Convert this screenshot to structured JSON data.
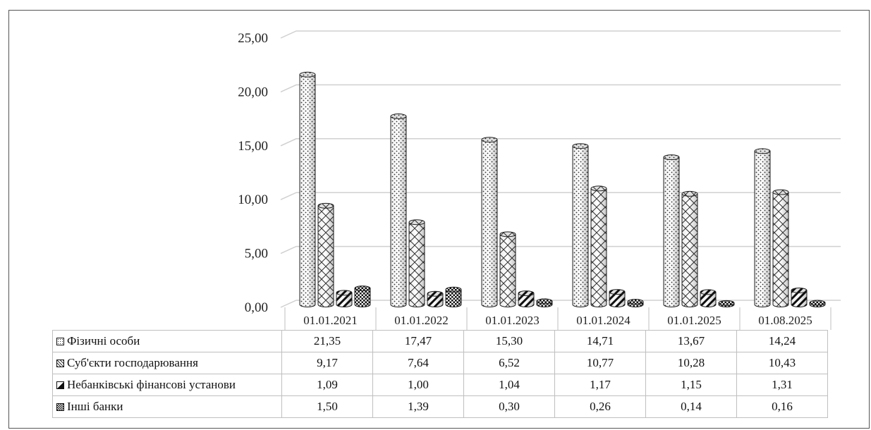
{
  "chart_data": {
    "type": "bar",
    "categories": [
      "01.01.2021",
      "01.01.2022",
      "01.01.2023",
      "01.01.2024",
      "01.01.2025",
      "01.08.2025"
    ],
    "series": [
      {
        "name": "Фізичні особи",
        "values": [
          21.35,
          17.47,
          15.3,
          14.71,
          13.67,
          14.24
        ],
        "display": [
          "21,35",
          "17,47",
          "15,30",
          "14,71",
          "13,67",
          "14,24"
        ],
        "pattern": "dots"
      },
      {
        "name": "Суб'єкти господарювання",
        "values": [
          9.17,
          7.64,
          6.52,
          10.77,
          10.28,
          10.43
        ],
        "display": [
          "9,17",
          "7,64",
          "6,52",
          "10,77",
          "10,28",
          "10,43"
        ],
        "pattern": "crosshatch"
      },
      {
        "name": "Небанківські фінансові установи",
        "values": [
          1.09,
          1.0,
          1.04,
          1.17,
          1.15,
          1.31
        ],
        "display": [
          "1,09",
          "1,00",
          "1,04",
          "1,17",
          "1,15",
          "1,31"
        ],
        "pattern": "diagonal"
      },
      {
        "name": "Інші банки",
        "values": [
          1.5,
          1.39,
          0.3,
          0.26,
          0.14,
          0.16
        ],
        "display": [
          "1,50",
          "1,39",
          "0,30",
          "0,26",
          "0,14",
          "0,16"
        ],
        "pattern": "checker"
      }
    ],
    "yticks": [
      "0,00",
      "5,00",
      "10,00",
      "15,00",
      "20,00",
      "25,00"
    ],
    "ylim": [
      0,
      25
    ],
    "grid": true,
    "legend": "data-table-below",
    "bar_shape": "3d-cylinder"
  }
}
